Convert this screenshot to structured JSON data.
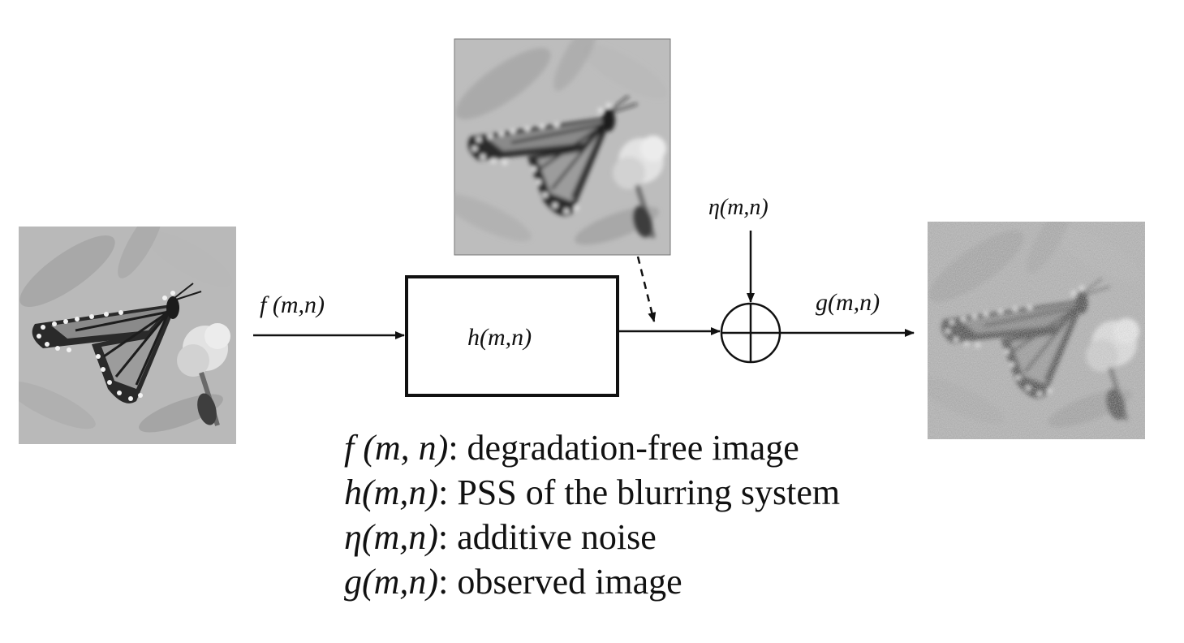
{
  "labels": {
    "input": "f (m,n)",
    "system": "h(m,n)",
    "noise": "η(m,n)",
    "output": "g(m,n)"
  },
  "legend": [
    {
      "sym": "f (m, n)",
      "desc": ": degradation-free image"
    },
    {
      "sym": "h(m,n)",
      "desc": ": PSS of the blurring system"
    },
    {
      "sym": "η(m,n)",
      "desc": ": additive noise"
    },
    {
      "sym": "g(m,n)",
      "desc": ": observed image"
    }
  ],
  "images": {
    "original": "butterfly-original",
    "blurred": "butterfly-blurred",
    "noisy": "butterfly-noisy"
  }
}
